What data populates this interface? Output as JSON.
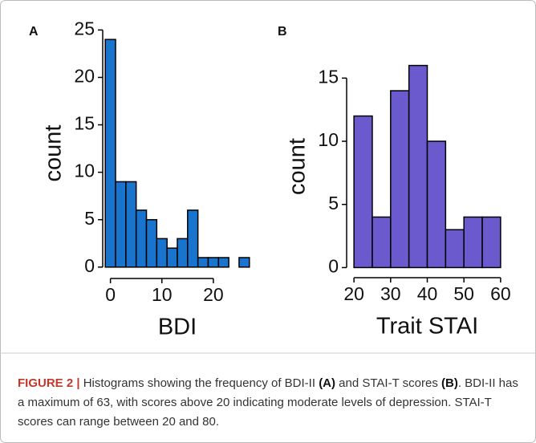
{
  "chart_data": [
    {
      "type": "histogram",
      "panel": "A",
      "ylabel": "count",
      "xlabel": "BDI",
      "color": "#1874cd",
      "bins": [
        -1,
        1,
        3,
        5,
        7,
        9,
        11,
        13,
        15,
        17,
        19,
        21,
        23,
        25,
        27
      ],
      "counts": [
        24,
        9,
        9,
        6,
        5,
        3,
        2,
        3,
        6,
        1,
        1,
        1,
        0,
        1
      ],
      "xlim": [
        -1.5,
        27.5
      ],
      "xticks": [
        0,
        10,
        20
      ],
      "ylim": [
        -1.2,
        25.2
      ],
      "yticks": [
        0,
        5,
        10,
        15,
        20,
        25
      ]
    },
    {
      "type": "histogram",
      "panel": "B",
      "ylabel": "count",
      "xlabel": "Trait STAI",
      "color": "#6a5acd",
      "bins": [
        20,
        25,
        30,
        35,
        40,
        45,
        50,
        55,
        60
      ],
      "counts": [
        12,
        4,
        14,
        16,
        10,
        3,
        4,
        4
      ],
      "xlim": [
        18,
        62
      ],
      "xticks": [
        20,
        30,
        40,
        50,
        60
      ],
      "ylim": [
        -0.8,
        16.8
      ],
      "yticks": [
        0,
        5,
        10,
        15
      ]
    }
  ],
  "caption": [
    "FIGURE 2 |",
    " Histograms showing the frequency of BDI-II ",
    "(A)",
    " and STAI-T scores ",
    "(B)",
    ". BDI-II has a maximum of 63, with scores above 20 indicating moderate levels of depression. STAI-T scores can range between 20 and 80."
  ]
}
